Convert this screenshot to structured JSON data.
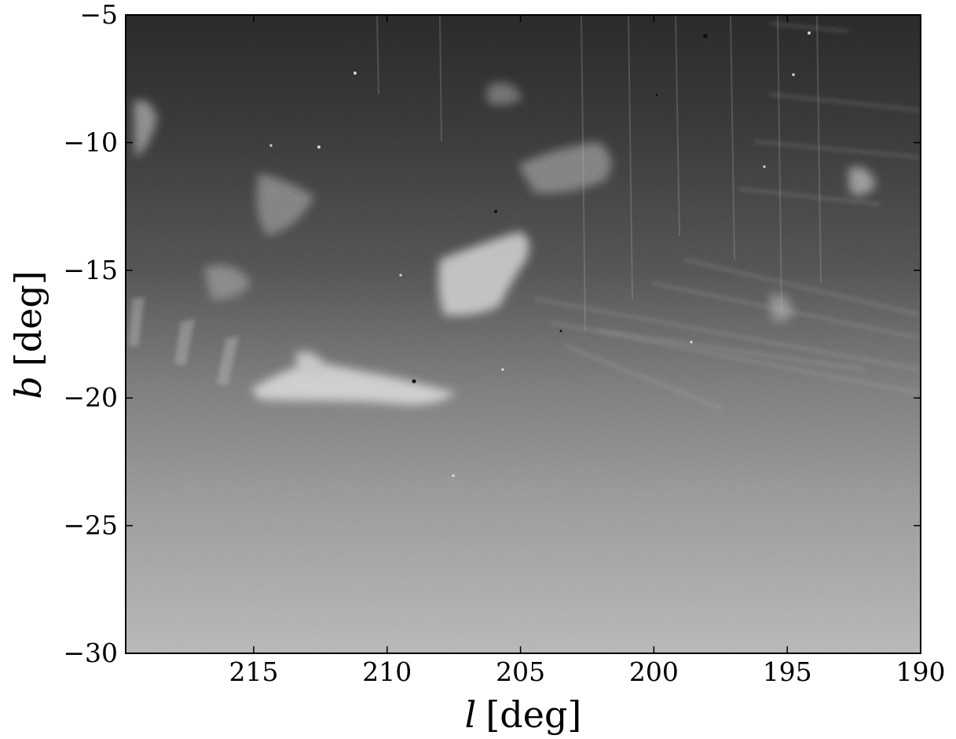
{
  "figure": {
    "xlabel_symbol": "l",
    "xlabel_unit": "[deg]",
    "ylabel_symbol": "b",
    "ylabel_unit": "[deg]",
    "x_axis": {
      "direction": "reversed",
      "ticks": [
        {
          "value": 215,
          "label": "215"
        },
        {
          "value": 210,
          "label": "210"
        },
        {
          "value": 205,
          "label": "205"
        },
        {
          "value": 200,
          "label": "200"
        },
        {
          "value": 195,
          "label": "195"
        },
        {
          "value": 190,
          "label": "190"
        }
      ],
      "range": [
        219.8,
        190
      ]
    },
    "y_axis": {
      "ticks": [
        {
          "value": -5,
          "label": "−5"
        },
        {
          "value": -10,
          "label": "−10"
        },
        {
          "value": -15,
          "label": "−15"
        },
        {
          "value": -20,
          "label": "−20"
        },
        {
          "value": -25,
          "label": "−25"
        },
        {
          "value": -30,
          "label": "−30"
        }
      ],
      "range": [
        -30,
        -5
      ]
    },
    "image": {
      "colormap": "grayscale",
      "grid": false
    }
  }
}
